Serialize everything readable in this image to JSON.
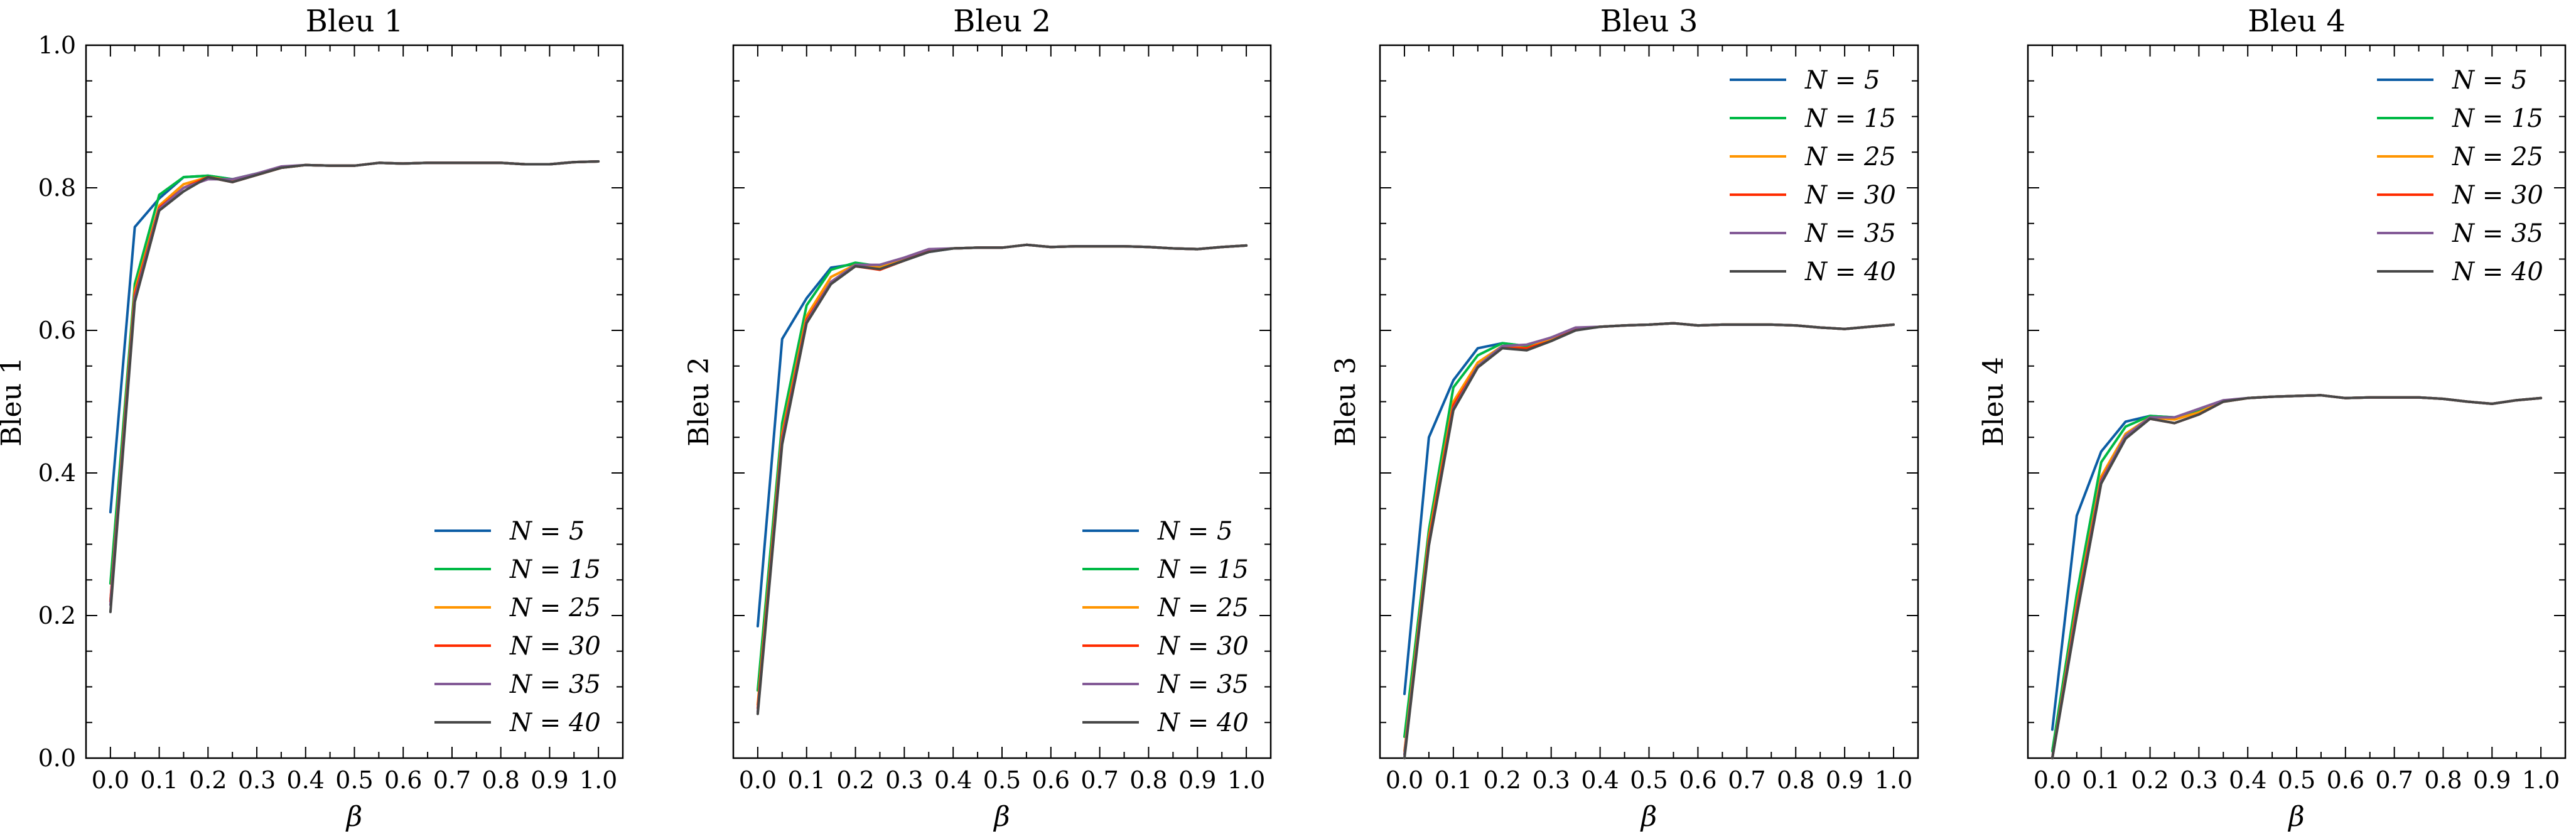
{
  "chart_data": [
    {
      "type": "line",
      "title": "Bleu 1",
      "xlabel": "β",
      "ylabel": "Bleu 1",
      "xlim": [
        -0.05,
        1.05
      ],
      "ylim": [
        0.0,
        1.0
      ],
      "x": [
        0.0,
        0.05,
        0.1,
        0.15,
        0.2,
        0.25,
        0.3,
        0.35,
        0.4,
        0.45,
        0.5,
        0.55,
        0.6,
        0.65,
        0.7,
        0.75,
        0.8,
        0.85,
        0.9,
        0.95,
        1.0
      ],
      "xticks": [
        "0.0",
        "0.1",
        "0.2",
        "0.3",
        "0.4",
        "0.5",
        "0.6",
        "0.7",
        "0.8",
        "0.9",
        "1.0"
      ],
      "yticks": [
        "0.0",
        "0.2",
        "0.4",
        "0.6",
        "0.8",
        "1.0"
      ],
      "legend_position": "lower-right",
      "series": [
        {
          "name": "N = 5",
          "color": "#0c5da5",
          "values": [
            0.345,
            0.745,
            0.785,
            0.815,
            0.817,
            0.812,
            0.82,
            0.828,
            0.832,
            0.831,
            0.831,
            0.835,
            0.834,
            0.835,
            0.835,
            0.835,
            0.835,
            0.833,
            0.833,
            0.836,
            0.837
          ]
        },
        {
          "name": "N = 15",
          "color": "#00b945",
          "values": [
            0.245,
            0.665,
            0.79,
            0.815,
            0.817,
            0.812,
            0.82,
            0.828,
            0.832,
            0.831,
            0.831,
            0.835,
            0.834,
            0.835,
            0.835,
            0.835,
            0.835,
            0.833,
            0.833,
            0.836,
            0.837
          ]
        },
        {
          "name": "N = 25",
          "color": "#ff9500",
          "values": [
            0.22,
            0.655,
            0.775,
            0.805,
            0.815,
            0.81,
            0.818,
            0.828,
            0.832,
            0.831,
            0.831,
            0.835,
            0.834,
            0.835,
            0.835,
            0.835,
            0.835,
            0.833,
            0.833,
            0.836,
            0.837
          ]
        },
        {
          "name": "N = 30",
          "color": "#ff2c00",
          "values": [
            0.22,
            0.65,
            0.772,
            0.8,
            0.815,
            0.808,
            0.818,
            0.828,
            0.832,
            0.831,
            0.831,
            0.835,
            0.834,
            0.835,
            0.835,
            0.835,
            0.835,
            0.833,
            0.833,
            0.836,
            0.837
          ]
        },
        {
          "name": "N = 35",
          "color": "#845b97",
          "values": [
            0.215,
            0.645,
            0.77,
            0.8,
            0.812,
            0.812,
            0.82,
            0.83,
            0.832,
            0.831,
            0.831,
            0.835,
            0.834,
            0.835,
            0.835,
            0.835,
            0.835,
            0.833,
            0.833,
            0.836,
            0.837
          ]
        },
        {
          "name": "N = 40",
          "color": "#474747",
          "values": [
            0.205,
            0.64,
            0.768,
            0.795,
            0.815,
            0.808,
            0.818,
            0.828,
            0.832,
            0.831,
            0.831,
            0.835,
            0.834,
            0.835,
            0.835,
            0.835,
            0.835,
            0.833,
            0.833,
            0.836,
            0.837
          ]
        }
      ]
    },
    {
      "type": "line",
      "title": "Bleu 2",
      "xlabel": "β",
      "ylabel": "Bleu 2",
      "xlim": [
        -0.05,
        1.05
      ],
      "ylim": [
        0.0,
        1.0
      ],
      "x": [
        0.0,
        0.05,
        0.1,
        0.15,
        0.2,
        0.25,
        0.3,
        0.35,
        0.4,
        0.45,
        0.5,
        0.55,
        0.6,
        0.65,
        0.7,
        0.75,
        0.8,
        0.85,
        0.9,
        0.95,
        1.0
      ],
      "xticks": [
        "0.0",
        "0.1",
        "0.2",
        "0.3",
        "0.4",
        "0.5",
        "0.6",
        "0.7",
        "0.8",
        "0.9",
        "1.0"
      ],
      "yticks": [],
      "legend_position": "lower-right",
      "series": [
        {
          "name": "N = 5",
          "color": "#0c5da5",
          "values": [
            0.185,
            0.588,
            0.645,
            0.688,
            0.693,
            0.69,
            0.7,
            0.71,
            0.715,
            0.716,
            0.716,
            0.72,
            0.717,
            0.718,
            0.718,
            0.718,
            0.717,
            0.715,
            0.714,
            0.717,
            0.719
          ]
        },
        {
          "name": "N = 15",
          "color": "#00b945",
          "values": [
            0.095,
            0.47,
            0.635,
            0.685,
            0.695,
            0.69,
            0.7,
            0.712,
            0.715,
            0.716,
            0.716,
            0.72,
            0.717,
            0.718,
            0.718,
            0.718,
            0.717,
            0.715,
            0.714,
            0.717,
            0.719
          ]
        },
        {
          "name": "N = 25",
          "color": "#ff9500",
          "values": [
            0.075,
            0.455,
            0.62,
            0.675,
            0.692,
            0.688,
            0.7,
            0.712,
            0.715,
            0.716,
            0.716,
            0.72,
            0.717,
            0.718,
            0.718,
            0.718,
            0.717,
            0.715,
            0.714,
            0.717,
            0.719
          ]
        },
        {
          "name": "N = 30",
          "color": "#ff2c00",
          "values": [
            0.07,
            0.45,
            0.615,
            0.668,
            0.69,
            0.685,
            0.698,
            0.712,
            0.715,
            0.716,
            0.716,
            0.72,
            0.717,
            0.718,
            0.718,
            0.718,
            0.717,
            0.715,
            0.714,
            0.717,
            0.719
          ]
        },
        {
          "name": "N = 35",
          "color": "#845b97",
          "values": [
            0.065,
            0.445,
            0.612,
            0.668,
            0.692,
            0.692,
            0.702,
            0.714,
            0.715,
            0.716,
            0.716,
            0.72,
            0.717,
            0.718,
            0.718,
            0.718,
            0.717,
            0.715,
            0.714,
            0.717,
            0.719
          ]
        },
        {
          "name": "N = 40",
          "color": "#474747",
          "values": [
            0.062,
            0.44,
            0.61,
            0.665,
            0.69,
            0.686,
            0.698,
            0.71,
            0.715,
            0.716,
            0.716,
            0.72,
            0.717,
            0.718,
            0.718,
            0.718,
            0.717,
            0.715,
            0.714,
            0.717,
            0.719
          ]
        }
      ]
    },
    {
      "type": "line",
      "title": "Bleu 3",
      "xlabel": "β",
      "ylabel": "Bleu 3",
      "xlim": [
        -0.05,
        1.05
      ],
      "ylim": [
        0.0,
        1.0
      ],
      "x": [
        0.0,
        0.05,
        0.1,
        0.15,
        0.2,
        0.25,
        0.3,
        0.35,
        0.4,
        0.45,
        0.5,
        0.55,
        0.6,
        0.65,
        0.7,
        0.75,
        0.8,
        0.85,
        0.9,
        0.95,
        1.0
      ],
      "xticks": [
        "0.0",
        "0.1",
        "0.2",
        "0.3",
        "0.4",
        "0.5",
        "0.6",
        "0.7",
        "0.8",
        "0.9",
        "1.0"
      ],
      "yticks": [],
      "legend_position": "upper-right",
      "series": [
        {
          "name": "N = 5",
          "color": "#0c5da5",
          "values": [
            0.09,
            0.45,
            0.53,
            0.575,
            0.582,
            0.578,
            0.59,
            0.602,
            0.605,
            0.607,
            0.608,
            0.61,
            0.607,
            0.608,
            0.608,
            0.608,
            0.607,
            0.604,
            0.602,
            0.605,
            0.608
          ]
        },
        {
          "name": "N = 15",
          "color": "#00b945",
          "values": [
            0.03,
            0.32,
            0.52,
            0.565,
            0.582,
            0.578,
            0.59,
            0.602,
            0.605,
            0.607,
            0.608,
            0.61,
            0.607,
            0.608,
            0.608,
            0.608,
            0.607,
            0.604,
            0.602,
            0.605,
            0.608
          ]
        },
        {
          "name": "N = 25",
          "color": "#ff9500",
          "values": [
            0.01,
            0.31,
            0.5,
            0.555,
            0.578,
            0.575,
            0.588,
            0.602,
            0.605,
            0.607,
            0.608,
            0.61,
            0.607,
            0.608,
            0.608,
            0.608,
            0.607,
            0.604,
            0.602,
            0.605,
            0.608
          ]
        },
        {
          "name": "N = 30",
          "color": "#ff2c00",
          "values": [
            0.005,
            0.305,
            0.495,
            0.55,
            0.575,
            0.575,
            0.585,
            0.602,
            0.605,
            0.607,
            0.608,
            0.61,
            0.607,
            0.608,
            0.608,
            0.608,
            0.607,
            0.604,
            0.602,
            0.605,
            0.608
          ]
        },
        {
          "name": "N = 35",
          "color": "#845b97",
          "values": [
            0.005,
            0.3,
            0.49,
            0.55,
            0.578,
            0.58,
            0.59,
            0.604,
            0.605,
            0.607,
            0.608,
            0.61,
            0.607,
            0.608,
            0.608,
            0.608,
            0.607,
            0.604,
            0.602,
            0.605,
            0.608
          ]
        },
        {
          "name": "N = 40",
          "color": "#474747",
          "values": [
            0.0,
            0.298,
            0.488,
            0.548,
            0.575,
            0.572,
            0.585,
            0.6,
            0.605,
            0.607,
            0.608,
            0.61,
            0.607,
            0.608,
            0.608,
            0.608,
            0.607,
            0.604,
            0.602,
            0.605,
            0.608
          ]
        }
      ]
    },
    {
      "type": "line",
      "title": "Bleu 4",
      "xlabel": "β",
      "ylabel": "Bleu 4",
      "xlim": [
        -0.05,
        1.05
      ],
      "ylim": [
        0.0,
        1.0
      ],
      "x": [
        0.0,
        0.05,
        0.1,
        0.15,
        0.2,
        0.25,
        0.3,
        0.35,
        0.4,
        0.45,
        0.5,
        0.55,
        0.6,
        0.65,
        0.7,
        0.75,
        0.8,
        0.85,
        0.9,
        0.95,
        1.0
      ],
      "xticks": [
        "0.0",
        "0.1",
        "0.2",
        "0.3",
        "0.4",
        "0.5",
        "0.6",
        "0.7",
        "0.8",
        "0.9",
        "1.0"
      ],
      "yticks": [],
      "legend_position": "upper-right",
      "series": [
        {
          "name": "N = 5",
          "color": "#0c5da5",
          "values": [
            0.04,
            0.34,
            0.43,
            0.472,
            0.48,
            0.478,
            0.485,
            0.5,
            0.505,
            0.507,
            0.508,
            0.509,
            0.505,
            0.506,
            0.506,
            0.506,
            0.504,
            0.5,
            0.497,
            0.502,
            0.505
          ]
        },
        {
          "name": "N = 15",
          "color": "#00b945",
          "values": [
            0.01,
            0.23,
            0.415,
            0.465,
            0.48,
            0.478,
            0.487,
            0.5,
            0.505,
            0.507,
            0.508,
            0.509,
            0.505,
            0.506,
            0.506,
            0.506,
            0.504,
            0.5,
            0.497,
            0.502,
            0.505
          ]
        },
        {
          "name": "N = 25",
          "color": "#ff9500",
          "values": [
            0.0,
            0.215,
            0.395,
            0.455,
            0.478,
            0.475,
            0.485,
            0.5,
            0.505,
            0.507,
            0.508,
            0.509,
            0.505,
            0.506,
            0.506,
            0.506,
            0.504,
            0.5,
            0.497,
            0.502,
            0.505
          ]
        },
        {
          "name": "N = 30",
          "color": "#ff2c00",
          "values": [
            0.0,
            0.21,
            0.39,
            0.45,
            0.476,
            0.47,
            0.482,
            0.5,
            0.505,
            0.507,
            0.508,
            0.509,
            0.505,
            0.506,
            0.506,
            0.506,
            0.504,
            0.5,
            0.497,
            0.502,
            0.505
          ]
        },
        {
          "name": "N = 35",
          "color": "#845b97",
          "values": [
            0.0,
            0.205,
            0.388,
            0.452,
            0.478,
            0.478,
            0.49,
            0.502,
            0.505,
            0.507,
            0.508,
            0.509,
            0.505,
            0.506,
            0.506,
            0.506,
            0.504,
            0.5,
            0.497,
            0.502,
            0.505
          ]
        },
        {
          "name": "N = 40",
          "color": "#474747",
          "values": [
            0.0,
            0.2,
            0.385,
            0.448,
            0.476,
            0.47,
            0.482,
            0.5,
            0.505,
            0.507,
            0.508,
            0.509,
            0.505,
            0.506,
            0.506,
            0.506,
            0.504,
            0.5,
            0.497,
            0.502,
            0.505
          ]
        }
      ]
    }
  ]
}
